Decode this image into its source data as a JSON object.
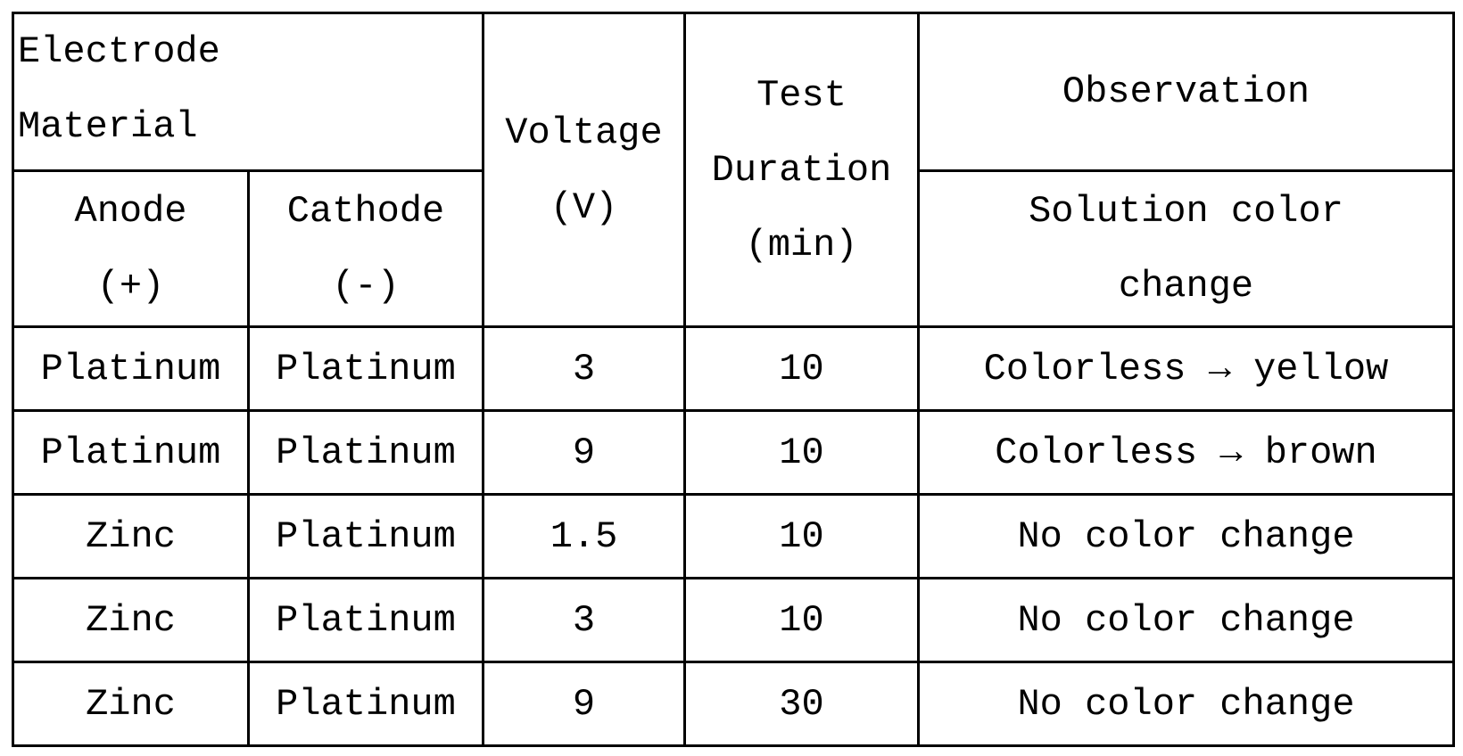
{
  "header": {
    "electrode_material": [
      "Electrode",
      "Material"
    ],
    "anode": [
      "Anode",
      "(+)"
    ],
    "cathode": [
      "Cathode",
      "(-)"
    ],
    "voltage": [
      "Voltage",
      "(V)"
    ],
    "duration": [
      "Test",
      "Duration",
      "(min)"
    ],
    "observation": "Observation",
    "observation_sub": [
      "Solution color",
      "change"
    ]
  },
  "table": {
    "rows": [
      [
        "Platinum",
        "Platinum",
        "3",
        "10",
        "Colorless → yellow"
      ],
      [
        "Platinum",
        "Platinum",
        "9",
        "10",
        "Colorless → brown"
      ],
      [
        "Zinc",
        "Platinum",
        "1.5",
        "10",
        "No color change"
      ],
      [
        "Zinc",
        "Platinum",
        "3",
        "10",
        "No color change"
      ],
      [
        "Zinc",
        "Platinum",
        "9",
        "30",
        "No color change"
      ]
    ]
  }
}
